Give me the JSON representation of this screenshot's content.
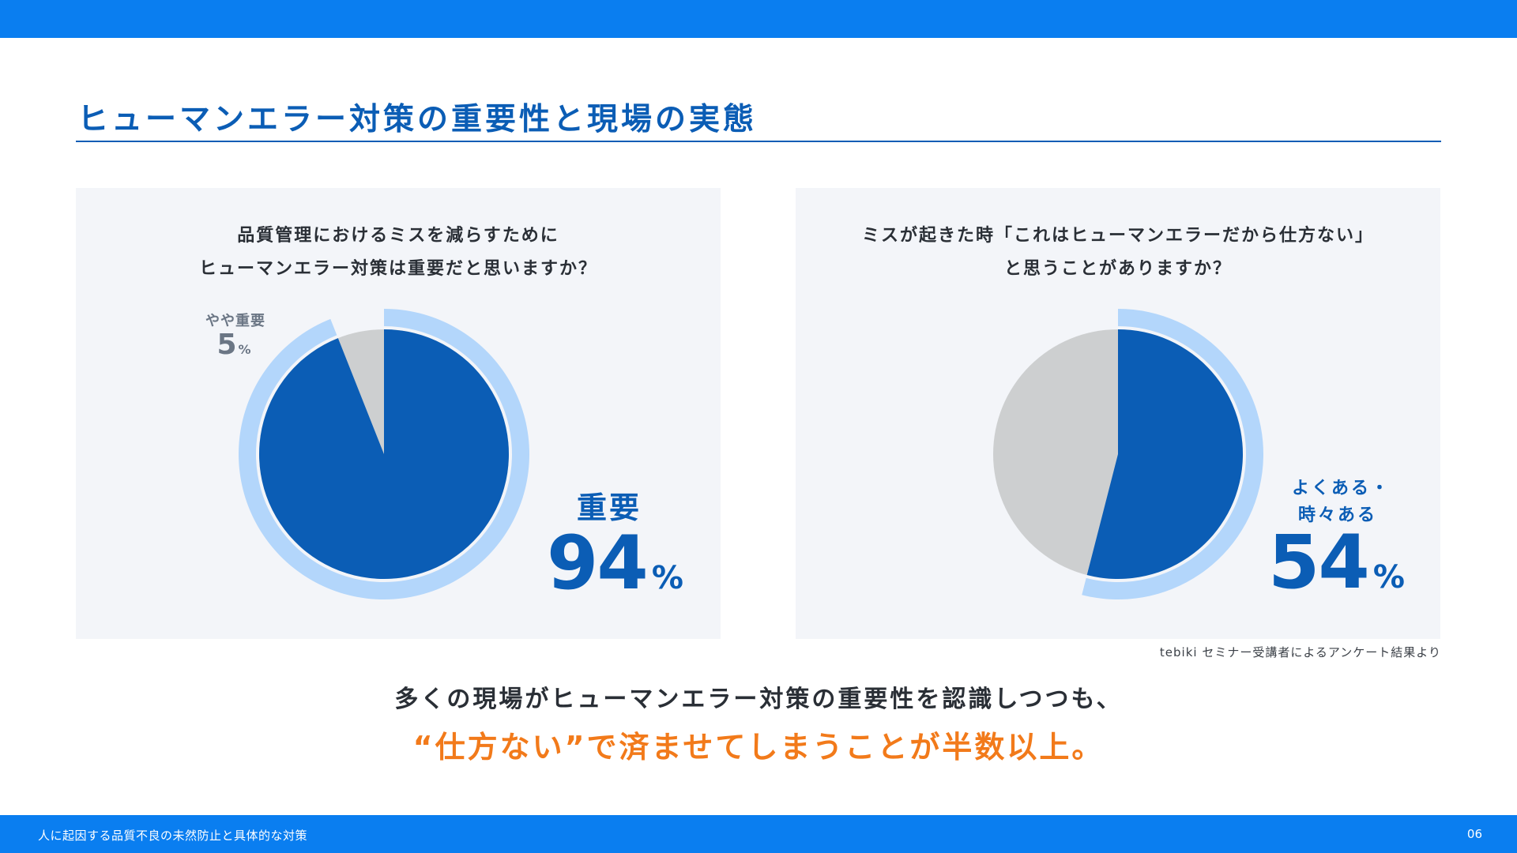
{
  "page": {
    "title": "ヒューマンエラー対策の重要性と現場の実態",
    "footer_title": "人に起因する品質不良の未然防止と具体的な対策",
    "page_number": "06",
    "source_note": "tebiki セミナー受講者によるアンケート結果より",
    "conclusion_line1": "多くの現場がヒューマンエラー対策の重要性を認識しつつも、",
    "conclusion_line2": "“仕方ない”で済ませてしまうことが半数以上。"
  },
  "colors": {
    "brand_blue": "#0a7ef0",
    "dark_blue": "#0b5db5",
    "light_blue": "#b3d6fb",
    "gray": "#cdcfd0",
    "orange": "#f27a1a",
    "panel_bg": "#f3f5f9"
  },
  "chart_data": [
    {
      "type": "pie",
      "title_line1": "品質管理におけるミスを減らすために",
      "title_line2": "ヒューマンエラー対策は重要だと思いますか？",
      "slices": [
        {
          "label": "重要",
          "value": 94,
          "color": "#0b5db5"
        },
        {
          "label": "やや重要",
          "value": 5,
          "color": "#cdcfd0"
        }
      ],
      "highlight": {
        "label": "重要",
        "number": "94",
        "unit": "%"
      },
      "secondary": {
        "label": "やや重要",
        "number": "5",
        "unit": "%"
      }
    },
    {
      "type": "pie",
      "title_line1": "ミスが起きた時「これはヒューマンエラーだから仕方ない」",
      "title_line2": "と思うことがありますか？",
      "slices": [
        {
          "label": "よくある・時々ある",
          "value": 54,
          "color": "#0b5db5"
        },
        {
          "label": "",
          "value": 46,
          "color": "#cdcfd0"
        }
      ],
      "highlight": {
        "label_line1": "よくある・",
        "label_line2": "時々ある",
        "number": "54",
        "unit": "%"
      }
    }
  ]
}
